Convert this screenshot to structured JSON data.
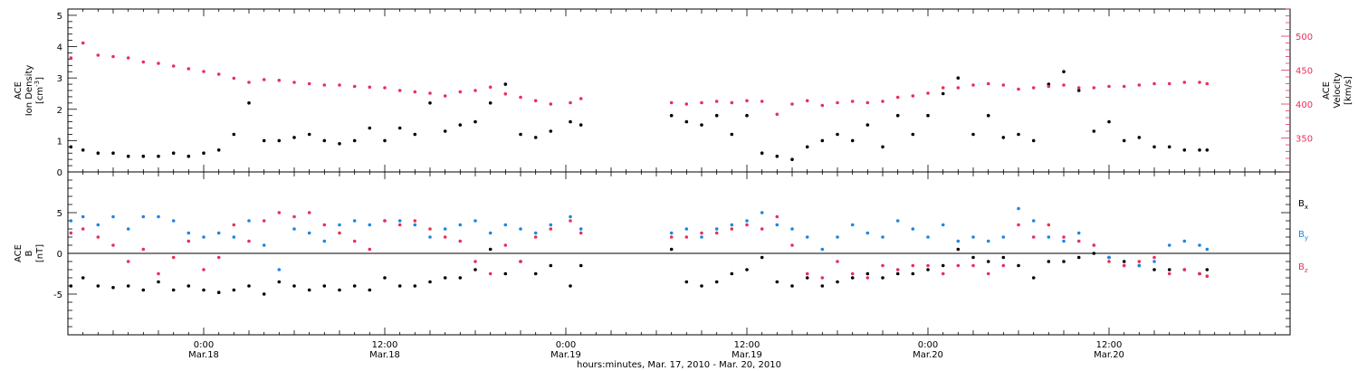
{
  "page": {
    "xlabel": "hours:minutes, Mar. 17, 2010 - Mar. 20, 2010"
  },
  "time_axis": {
    "start_hour": -9,
    "end_hour": 72,
    "ticks": [
      {
        "hour": 0,
        "label_time": "0:00",
        "label_date": "Mar.18"
      },
      {
        "hour": 12,
        "label_time": "12:00",
        "label_date": "Mar.18"
      },
      {
        "hour": 24,
        "label_time": "0:00",
        "label_date": "Mar.19"
      },
      {
        "hour": 36,
        "label_time": "12:00",
        "label_date": "Mar.19"
      },
      {
        "hour": 48,
        "label_time": "0:00",
        "label_date": "Mar.20"
      },
      {
        "hour": 60,
        "label_time": "12:00",
        "label_date": "Mar.20"
      }
    ]
  },
  "colors": {
    "black": "#000000",
    "pink": "#e8305a",
    "blue": "#1f86e0"
  },
  "chart_data": [
    {
      "type": "scatter",
      "panel": "top",
      "ylabel_lines": [
        "ACE",
        "Ion Density"
      ],
      "yunit_left": "[cm",
      "yunit_sup": "-3",
      "yunit_right": "]",
      "ylim": [
        0,
        5.2
      ],
      "yticks": [
        0,
        1,
        2,
        3,
        4,
        5
      ],
      "y2label_lines": [
        "ACE",
        "Velocity",
        "[km/s]"
      ],
      "y2lim": [
        300,
        540
      ],
      "y2ticks": [
        350,
        400,
        450,
        500
      ],
      "grid": false,
      "series": [
        {
          "role": "density",
          "axis": "left",
          "color": "#000000",
          "x": [
            -8.8,
            -8,
            -7,
            -6,
            -5,
            -4,
            -3,
            -2,
            -1,
            0,
            1,
            2,
            3,
            4,
            5,
            6,
            7,
            8,
            9,
            10,
            11,
            12,
            13,
            14,
            15,
            16,
            17,
            18,
            19,
            20,
            21,
            22,
            23,
            24.3,
            25,
            31,
            32,
            33,
            34,
            35,
            36,
            37,
            38,
            39,
            40,
            41,
            42,
            43,
            44,
            45,
            46,
            47,
            48,
            49,
            50,
            51,
            52,
            53,
            54,
            55,
            56,
            57,
            58,
            59,
            60,
            61,
            62,
            63,
            64,
            65,
            66,
            66.5
          ],
          "y": [
            0.8,
            0.7,
            0.6,
            0.6,
            0.5,
            0.5,
            0.5,
            0.6,
            0.5,
            0.6,
            0.7,
            1.2,
            2.2,
            1.0,
            1.0,
            1.1,
            1.2,
            1.0,
            0.9,
            1.0,
            1.4,
            1.0,
            1.4,
            1.2,
            2.2,
            1.3,
            1.5,
            1.6,
            2.2,
            2.8,
            1.2,
            1.1,
            1.3,
            1.6,
            1.5,
            1.8,
            1.6,
            1.5,
            1.8,
            1.2,
            1.8,
            0.6,
            0.5,
            0.4,
            0.8,
            1.0,
            1.2,
            1.0,
            1.5,
            0.8,
            1.8,
            1.2,
            1.8,
            2.5,
            3.0,
            1.2,
            1.8,
            1.1,
            1.2,
            1.0,
            2.8,
            3.2,
            2.6,
            1.3,
            1.6,
            1.0,
            1.1,
            0.8,
            0.8,
            0.7,
            0.7,
            0.7
          ]
        },
        {
          "role": "velocity",
          "axis": "right",
          "color": "#e8305a",
          "x": [
            -8.8,
            -8,
            -7,
            -6,
            -5,
            -4,
            -3,
            -2,
            -1,
            0,
            1,
            2,
            3,
            4,
            5,
            6,
            7,
            8,
            9,
            10,
            11,
            12,
            13,
            14,
            15,
            16,
            17,
            18,
            19,
            20,
            21,
            22,
            23,
            24.3,
            25,
            31,
            32,
            33,
            34,
            35,
            36,
            37,
            38,
            39,
            40,
            41,
            42,
            43,
            44,
            45,
            46,
            47,
            48,
            49,
            50,
            51,
            52,
            53,
            54,
            55,
            56,
            57,
            58,
            59,
            60,
            61,
            62,
            63,
            64,
            65,
            66,
            66.5
          ],
          "y": [
            468,
            490,
            472,
            470,
            468,
            462,
            460,
            456,
            452,
            448,
            444,
            438,
            432,
            436,
            435,
            432,
            430,
            428,
            428,
            426,
            425,
            424,
            420,
            418,
            416,
            412,
            418,
            420,
            425,
            415,
            410,
            405,
            400,
            402,
            408,
            402,
            400,
            402,
            404,
            402,
            405,
            404,
            385,
            400,
            405,
            398,
            402,
            404,
            402,
            404,
            410,
            412,
            416,
            424,
            424,
            428,
            430,
            428,
            422,
            424,
            426,
            428,
            424,
            424,
            426,
            426,
            428,
            430,
            430,
            432,
            432,
            430
          ]
        }
      ]
    },
    {
      "type": "scatter",
      "panel": "bottom",
      "ylabel_lines": [
        "ACE",
        "B",
        "[nT]"
      ],
      "ylim": [
        -10,
        10
      ],
      "yticks": [
        -5,
        0,
        5
      ],
      "zero_line": true,
      "grid": false,
      "series": [
        {
          "name": "B",
          "subscript": "x",
          "color": "#000000",
          "x": [
            -8.8,
            -8,
            -7,
            -6,
            -5,
            -4,
            -3,
            -2,
            -1,
            0,
            1,
            2,
            3,
            4,
            5,
            6,
            7,
            8,
            9,
            10,
            11,
            12,
            13,
            14,
            15,
            16,
            17,
            18,
            19,
            20,
            21,
            22,
            23,
            24.3,
            25,
            31,
            32,
            33,
            34,
            35,
            36,
            37,
            38,
            39,
            40,
            41,
            42,
            43,
            44,
            45,
            46,
            47,
            48,
            49,
            50,
            51,
            52,
            53,
            54,
            55,
            56,
            57,
            58,
            59,
            60,
            61,
            62,
            63,
            64,
            65,
            66,
            66.5
          ],
          "y": [
            -4.0,
            -3.0,
            -4.0,
            -4.2,
            -4.0,
            -4.5,
            -3.5,
            -4.5,
            -4.0,
            -4.5,
            -4.8,
            -4.5,
            -4.0,
            -5.0,
            -3.5,
            -4.0,
            -4.5,
            -4.0,
            -4.5,
            -4.0,
            -4.5,
            -3.0,
            -4.0,
            -4.0,
            -3.5,
            -3.0,
            -3.0,
            -2.0,
            0.5,
            -2.5,
            -1.0,
            -2.5,
            -1.5,
            -4.0,
            -1.5,
            0.5,
            -3.5,
            -4.0,
            -3.5,
            -2.5,
            -2.0,
            -0.5,
            -3.5,
            -4.0,
            -3.0,
            -4.0,
            -3.5,
            -3.0,
            -2.5,
            -3.0,
            -2.5,
            -2.5,
            -2.0,
            -1.5,
            0.5,
            -0.5,
            -1.0,
            -0.5,
            -1.5,
            -3.0,
            -1.0,
            -1.0,
            -0.5,
            0.0,
            -0.5,
            -1.0,
            -1.5,
            -2.0,
            -2.0,
            -2.0,
            -2.5,
            -2.0
          ]
        },
        {
          "name": "B",
          "subscript": "y",
          "color": "#1f86e0",
          "x": [
            -8.8,
            -8,
            -7,
            -6,
            -5,
            -4,
            -3,
            -2,
            -1,
            0,
            1,
            2,
            3,
            4,
            5,
            6,
            7,
            8,
            9,
            10,
            11,
            12,
            13,
            14,
            15,
            16,
            17,
            18,
            19,
            20,
            21,
            22,
            23,
            24.3,
            25,
            31,
            32,
            33,
            34,
            35,
            36,
            37,
            38,
            39,
            40,
            41,
            42,
            43,
            44,
            45,
            46,
            47,
            48,
            49,
            50,
            51,
            52,
            53,
            54,
            55,
            56,
            57,
            58,
            59,
            60,
            61,
            62,
            63,
            64,
            65,
            66,
            66.5
          ],
          "y": [
            4.0,
            4.5,
            3.5,
            4.5,
            3.0,
            4.5,
            4.5,
            4.0,
            2.5,
            2.0,
            2.5,
            2.0,
            4.0,
            1.0,
            -2.0,
            3.0,
            2.5,
            1.5,
            3.5,
            4.0,
            3.5,
            4.0,
            4.0,
            3.5,
            2.0,
            3.0,
            3.5,
            4.0,
            2.5,
            3.5,
            3.0,
            2.5,
            3.5,
            4.5,
            3.0,
            2.5,
            3.0,
            2.0,
            3.0,
            3.5,
            4.0,
            5.0,
            3.5,
            3.0,
            2.0,
            0.5,
            2.0,
            3.5,
            2.5,
            2.0,
            4.0,
            3.0,
            2.0,
            3.5,
            1.5,
            2.0,
            1.5,
            2.0,
            5.5,
            4.0,
            2.0,
            1.5,
            2.5,
            1.0,
            -0.5,
            -1.5,
            -1.5,
            -1.0,
            1.0,
            1.5,
            1.0,
            0.5
          ]
        },
        {
          "name": "B",
          "subscript": "z",
          "color": "#e8305a",
          "x": [
            -8.8,
            -8,
            -7,
            -6,
            -5,
            -4,
            -3,
            -2,
            -1,
            0,
            1,
            2,
            3,
            4,
            5,
            6,
            7,
            8,
            9,
            10,
            11,
            12,
            13,
            14,
            15,
            16,
            17,
            18,
            19,
            20,
            21,
            22,
            23,
            24.3,
            25,
            31,
            32,
            33,
            34,
            35,
            36,
            37,
            38,
            39,
            40,
            41,
            42,
            43,
            44,
            45,
            46,
            47,
            48,
            49,
            50,
            51,
            52,
            53,
            54,
            55,
            56,
            57,
            58,
            59,
            60,
            61,
            62,
            63,
            64,
            65,
            66,
            66.5
          ],
          "y": [
            2.5,
            3.0,
            2.0,
            1.0,
            -1.0,
            0.5,
            -2.5,
            -0.5,
            1.5,
            -2.0,
            -0.5,
            3.5,
            1.5,
            4.0,
            5.0,
            4.5,
            5.0,
            3.5,
            2.5,
            1.5,
            0.5,
            4.0,
            3.5,
            4.0,
            3.0,
            2.0,
            1.5,
            -1.0,
            -2.5,
            1.0,
            -1.0,
            2.0,
            3.0,
            4.0,
            2.5,
            2.0,
            2.0,
            2.5,
            2.5,
            3.0,
            3.5,
            3.0,
            4.5,
            1.0,
            -2.5,
            -3.0,
            -1.0,
            -2.5,
            -3.0,
            -1.5,
            -2.0,
            -1.5,
            -1.5,
            -2.5,
            -1.5,
            -1.5,
            -2.5,
            -1.5,
            3.5,
            2.0,
            3.5,
            2.0,
            1.5,
            1.0,
            -1.0,
            -1.5,
            -1.0,
            -0.5,
            -2.5,
            -2.0,
            -2.5,
            -2.8
          ]
        }
      ]
    }
  ]
}
